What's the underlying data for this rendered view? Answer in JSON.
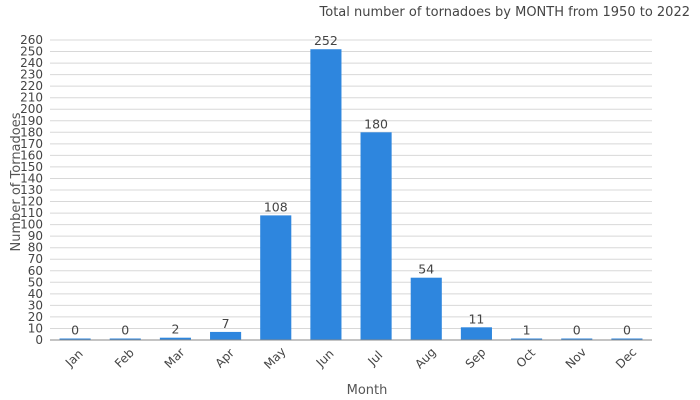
{
  "chart_data": {
    "type": "bar",
    "title": "Total number of tornadoes by MONTH from 1950 to 2022",
    "xlabel": "Month",
    "ylabel": "Number of Tornadoes",
    "categories": [
      "Jan",
      "Feb",
      "Mar",
      "Apr",
      "May",
      "Jun",
      "Jul",
      "Aug",
      "Sep",
      "Oct",
      "Nov",
      "Dec"
    ],
    "values": [
      0,
      0,
      2,
      7,
      108,
      252,
      180,
      54,
      11,
      1,
      0,
      0
    ],
    "ylim": [
      0,
      260
    ],
    "ytick_step": 10,
    "grid": true,
    "legend": "none",
    "bar_color": "#2e86de"
  }
}
